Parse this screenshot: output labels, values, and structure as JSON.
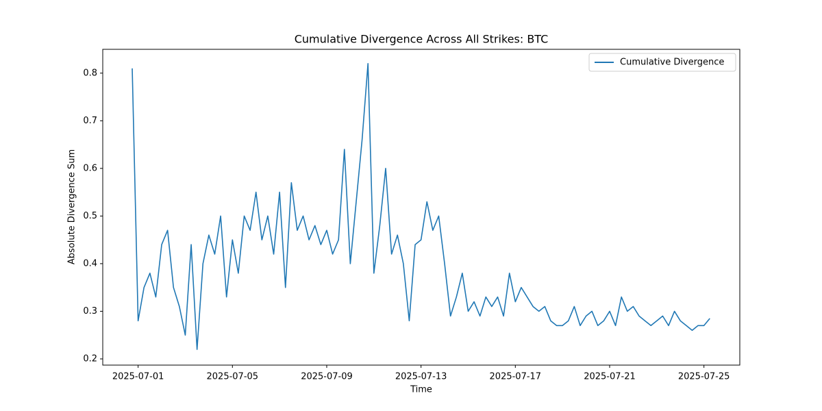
{
  "chart_data": {
    "type": "line",
    "title": "Cumulative Divergence Across All Strikes: BTC",
    "x_label": "Time",
    "y_label": "Absolute Divergence Sum",
    "legend": "upper right",
    "grid": false,
    "xlim": [
      "2025-06-29T12:00",
      "2025-07-26T12:30"
    ],
    "xticks": [
      "2025-07-01",
      "2025-07-05",
      "2025-07-09",
      "2025-07-13",
      "2025-07-17",
      "2025-07-21",
      "2025-07-25"
    ],
    "ylim": [
      0.187,
      0.85
    ],
    "yticks": [
      0.2,
      0.3,
      0.4,
      0.5,
      0.6,
      0.7,
      0.8
    ],
    "x": [
      "2025-06-30T18:00",
      "2025-07-01T00:00",
      "2025-07-01T06:00",
      "2025-07-01T12:00",
      "2025-07-01T18:00",
      "2025-07-02T00:00",
      "2025-07-02T06:00",
      "2025-07-02T12:00",
      "2025-07-02T18:00",
      "2025-07-03T00:00",
      "2025-07-03T06:00",
      "2025-07-03T12:00",
      "2025-07-03T18:00",
      "2025-07-04T00:00",
      "2025-07-04T06:00",
      "2025-07-04T12:00",
      "2025-07-04T18:00",
      "2025-07-05T00:00",
      "2025-07-05T06:00",
      "2025-07-05T12:00",
      "2025-07-05T18:00",
      "2025-07-06T00:00",
      "2025-07-06T06:00",
      "2025-07-06T12:00",
      "2025-07-06T18:00",
      "2025-07-07T00:00",
      "2025-07-07T06:00",
      "2025-07-07T12:00",
      "2025-07-07T18:00",
      "2025-07-08T00:00",
      "2025-07-08T06:00",
      "2025-07-08T12:00",
      "2025-07-08T18:00",
      "2025-07-09T00:00",
      "2025-07-09T06:00",
      "2025-07-09T12:00",
      "2025-07-09T18:00",
      "2025-07-10T00:00",
      "2025-07-10T06:00",
      "2025-07-10T12:00",
      "2025-07-10T18:00",
      "2025-07-11T00:00",
      "2025-07-11T06:00",
      "2025-07-11T12:00",
      "2025-07-11T18:00",
      "2025-07-12T00:00",
      "2025-07-12T06:00",
      "2025-07-12T12:00",
      "2025-07-12T18:00",
      "2025-07-13T00:00",
      "2025-07-13T06:00",
      "2025-07-13T12:00",
      "2025-07-13T18:00",
      "2025-07-14T00:00",
      "2025-07-14T06:00",
      "2025-07-14T12:00",
      "2025-07-14T18:00",
      "2025-07-15T00:00",
      "2025-07-15T06:00",
      "2025-07-15T12:00",
      "2025-07-15T18:00",
      "2025-07-16T00:00",
      "2025-07-16T06:00",
      "2025-07-16T12:00",
      "2025-07-16T18:00",
      "2025-07-17T00:00",
      "2025-07-17T06:00",
      "2025-07-17T12:00",
      "2025-07-17T18:00",
      "2025-07-18T00:00",
      "2025-07-18T06:00",
      "2025-07-18T12:00",
      "2025-07-18T18:00",
      "2025-07-19T00:00",
      "2025-07-19T06:00",
      "2025-07-19T12:00",
      "2025-07-19T18:00",
      "2025-07-20T00:00",
      "2025-07-20T06:00",
      "2025-07-20T12:00",
      "2025-07-20T18:00",
      "2025-07-21T00:00",
      "2025-07-21T06:00",
      "2025-07-21T12:00",
      "2025-07-21T18:00",
      "2025-07-22T00:00",
      "2025-07-22T06:00",
      "2025-07-22T12:00",
      "2025-07-22T18:00",
      "2025-07-23T00:00",
      "2025-07-23T06:00",
      "2025-07-23T12:00",
      "2025-07-23T18:00",
      "2025-07-24T00:00",
      "2025-07-24T06:00",
      "2025-07-24T12:00",
      "2025-07-24T18:00",
      "2025-07-25T00:00",
      "2025-07-25T06:00"
    ],
    "series": [
      {
        "name": "Cumulative Divergence",
        "color": "#1f77b4",
        "values": [
          0.81,
          0.28,
          0.35,
          0.38,
          0.33,
          0.44,
          0.47,
          0.35,
          0.31,
          0.25,
          0.44,
          0.22,
          0.4,
          0.46,
          0.42,
          0.5,
          0.33,
          0.45,
          0.38,
          0.5,
          0.47,
          0.55,
          0.45,
          0.5,
          0.42,
          0.55,
          0.35,
          0.57,
          0.47,
          0.5,
          0.45,
          0.48,
          0.44,
          0.47,
          0.42,
          0.45,
          0.64,
          0.4,
          0.53,
          0.66,
          0.82,
          0.38,
          0.48,
          0.6,
          0.42,
          0.46,
          0.4,
          0.28,
          0.44,
          0.45,
          0.53,
          0.47,
          0.5,
          0.4,
          0.29,
          0.33,
          0.38,
          0.3,
          0.32,
          0.29,
          0.33,
          0.31,
          0.33,
          0.29,
          0.38,
          0.32,
          0.35,
          0.33,
          0.31,
          0.3,
          0.31,
          0.28,
          0.27,
          0.27,
          0.28,
          0.31,
          0.27,
          0.29,
          0.3,
          0.27,
          0.28,
          0.3,
          0.27,
          0.33,
          0.3,
          0.31,
          0.29,
          0.28,
          0.27,
          0.28,
          0.29,
          0.27,
          0.3,
          0.28,
          0.27,
          0.26,
          0.27,
          0.27,
          0.285
        ]
      }
    ]
  }
}
